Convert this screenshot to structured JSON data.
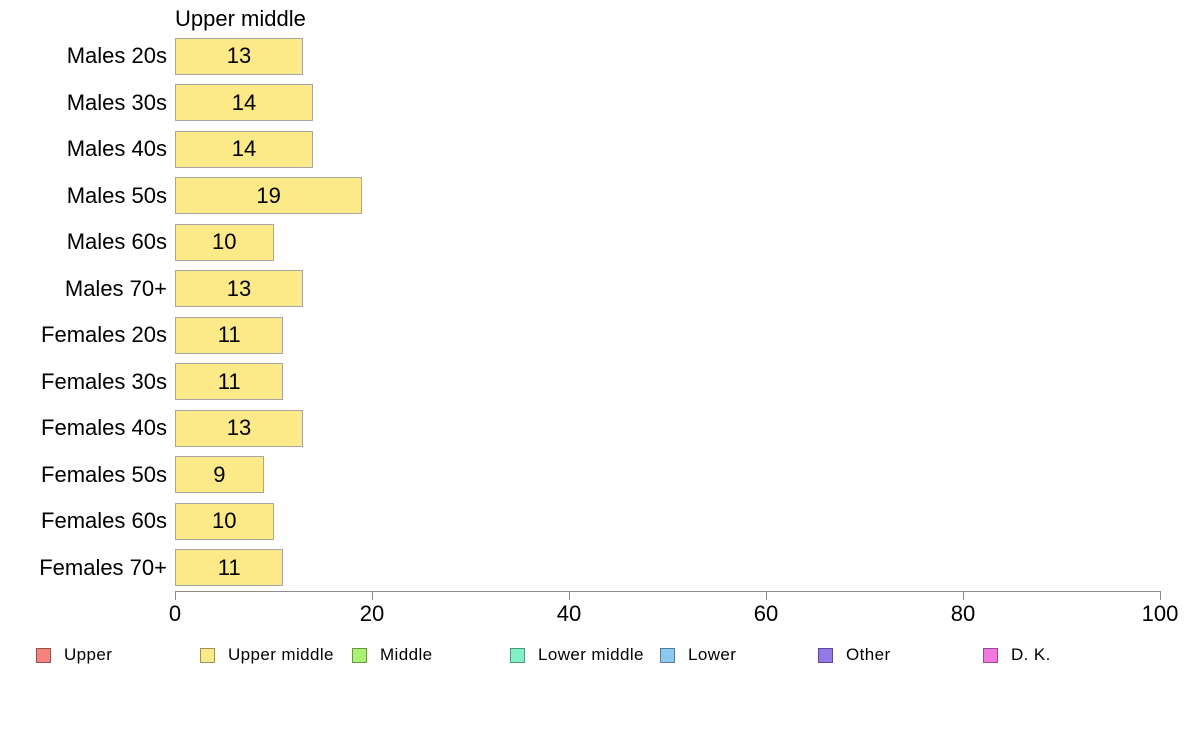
{
  "chart_data": {
    "type": "bar",
    "orientation": "horizontal",
    "title": "Upper middle",
    "categories": [
      "Males 20s",
      "Males 30s",
      "Males 40s",
      "Males 50s",
      "Males 60s",
      "Males 70+",
      "Females 20s",
      "Females 30s",
      "Females 40s",
      "Females 50s",
      "Females 60s",
      "Females 70+"
    ],
    "values": [
      13,
      14,
      14,
      19,
      10,
      13,
      11,
      11,
      13,
      9,
      10,
      11
    ],
    "xlabel": "",
    "ylabel": "",
    "xlim": [
      0,
      100
    ],
    "x_ticks": [
      0,
      20,
      40,
      60,
      80,
      100
    ],
    "grid": false,
    "value_labels_shown": true,
    "bar_color": "#FCE988",
    "bar_border_color": "#A5A5A5",
    "axis_color": "#8C8C8C",
    "legend_position": "bottom",
    "legend": [
      {
        "label": "Upper",
        "color": "#F5827E"
      },
      {
        "label": "Upper middle",
        "color": "#FCE988"
      },
      {
        "label": "Middle",
        "color": "#A8F171"
      },
      {
        "label": "Lower middle",
        "color": "#80F2C5"
      },
      {
        "label": "Lower",
        "color": "#8CC8F0"
      },
      {
        "label": "Other",
        "color": "#9478E8"
      },
      {
        "label": "D. K.",
        "color": "#F377E1"
      }
    ]
  }
}
